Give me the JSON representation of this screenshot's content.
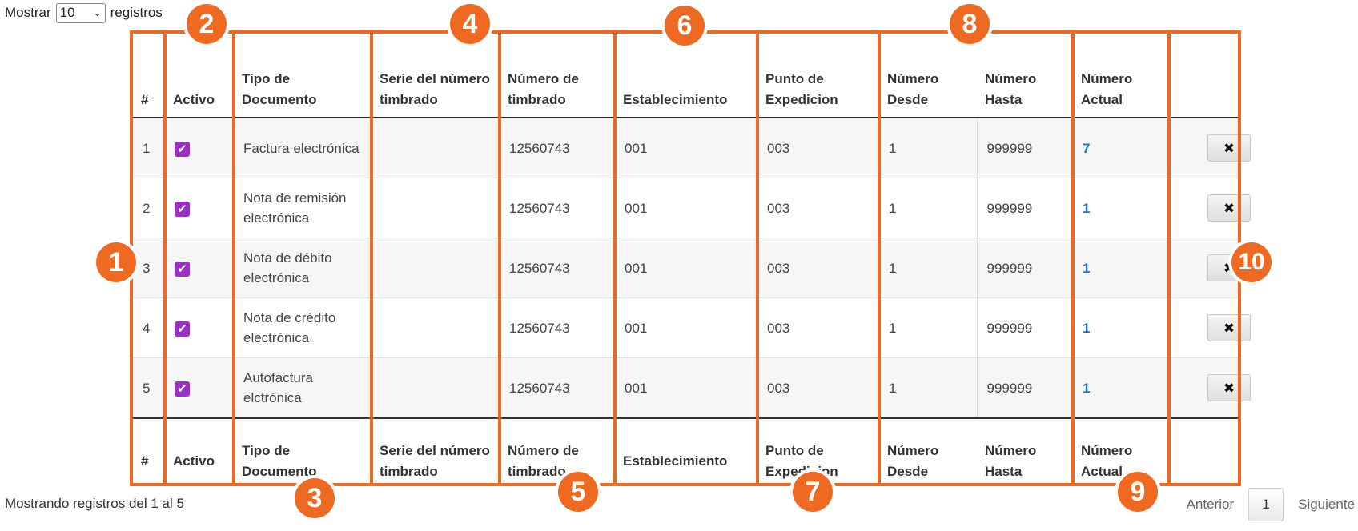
{
  "length_control": {
    "prefix": "Mostrar",
    "value": "10",
    "suffix": "registros"
  },
  "columns": [
    "#",
    "Activo",
    "Tipo de Documento",
    "Serie del número timbrado",
    "Número de timbrado",
    "Establecimiento",
    "Punto de Expedicion",
    "Número Desde",
    "Número Hasta",
    "Número Actual",
    ""
  ],
  "rows": [
    {
      "num": "1",
      "activo": true,
      "tipo": "Factura electrónica",
      "serie": "",
      "timbrado": "12560743",
      "establecimiento": "001",
      "punto": "003",
      "desde": "1",
      "hasta": "999999",
      "actual": "7"
    },
    {
      "num": "2",
      "activo": true,
      "tipo": "Nota de remisión electrónica",
      "serie": "",
      "timbrado": "12560743",
      "establecimiento": "001",
      "punto": "003",
      "desde": "1",
      "hasta": "999999",
      "actual": "1"
    },
    {
      "num": "3",
      "activo": true,
      "tipo": "Nota de débito electrónica",
      "serie": "",
      "timbrado": "12560743",
      "establecimiento": "001",
      "punto": "003",
      "desde": "1",
      "hasta": "999999",
      "actual": "1"
    },
    {
      "num": "4",
      "activo": true,
      "tipo": "Nota de crédito electrónica",
      "serie": "",
      "timbrado": "12560743",
      "establecimiento": "001",
      "punto": "003",
      "desde": "1",
      "hasta": "999999",
      "actual": "1"
    },
    {
      "num": "5",
      "activo": true,
      "tipo": "Autofactura elctrónica",
      "serie": "",
      "timbrado": "12560743",
      "establecimiento": "001",
      "punto": "003",
      "desde": "1",
      "hasta": "999999",
      "actual": "1"
    }
  ],
  "delete_icon": "✖",
  "check_icon": "✔",
  "info_text": "Mostrando registros del 1 al 5",
  "pager": {
    "prev": "Anterior",
    "current": "1",
    "next": "Siguiente"
  },
  "badges": [
    "1",
    "2",
    "3",
    "4",
    "5",
    "6",
    "7",
    "8",
    "9",
    "10"
  ],
  "accent_color": "#ee6a23",
  "checkbox_color": "#9b30c4",
  "link_color": "#1a73d2"
}
